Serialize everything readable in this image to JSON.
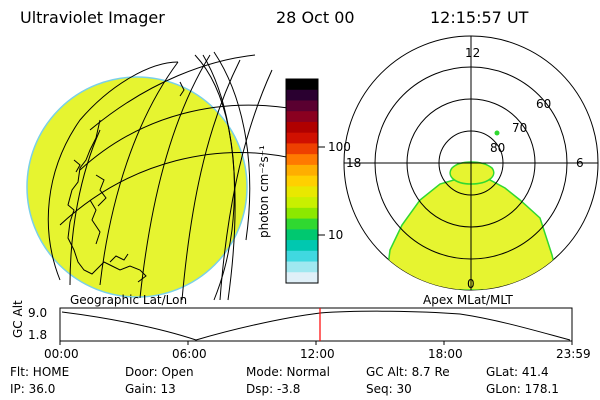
{
  "header": {
    "instrument": "Ultraviolet Imager",
    "date": "28 Oct 00",
    "time": "12:15:57 UT"
  },
  "colorbar": {
    "unit_label": "photon cm⁻²s⁻¹",
    "tick_labels": [
      "100",
      "10"
    ],
    "colors": [
      "#000000",
      "#2a0030",
      "#5a0030",
      "#8a0020",
      "#b00000",
      "#d01000",
      "#ee4000",
      "#ff7a00",
      "#ffae00",
      "#ffd000",
      "#e8e800",
      "#c8f000",
      "#8ce800",
      "#30d830",
      "#00c870",
      "#00c8b0",
      "#40d8e0",
      "#a0e8f0",
      "#e0f0f8"
    ]
  },
  "left_panel": {
    "label": "Geographic Lat/Lon",
    "fill_color": "#e6f430"
  },
  "right_panel": {
    "label": "Apex MLat/MLT",
    "mlt_labels": {
      "top": "12",
      "left": "18",
      "right": "6",
      "bottom": "0"
    },
    "lat_labels": [
      "60",
      "70",
      "80"
    ],
    "fill_color": "#e6f430"
  },
  "timeline": {
    "axis_label": "GC Alt",
    "y_ticks": [
      "9.0",
      "1.8"
    ],
    "x_ticks": [
      "00:00",
      "06:00",
      "12:00",
      "18:00",
      "23:59"
    ],
    "current_time_line_color": "#ff0000"
  },
  "status": {
    "flt": "Flt: HOME",
    "ip": "IP: 36.0",
    "door": "Door: Open",
    "gain": "Gain: 13",
    "mode": "Mode: Normal",
    "dsp": "Dsp:   -3.8",
    "gc_alt": "GC Alt: 8.7 Re",
    "seq": "Seq: 30",
    "glat": "GLat:  41.4",
    "glon": "GLon: 178.1"
  }
}
